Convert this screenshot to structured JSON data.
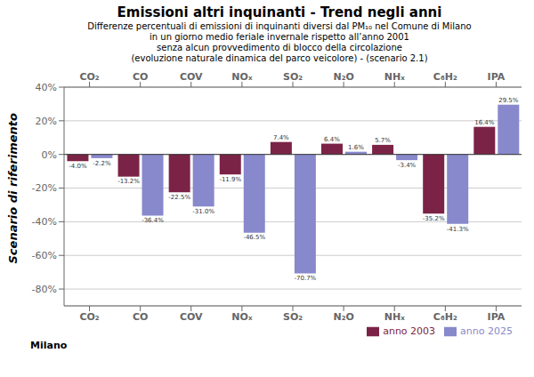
{
  "chart_data": {
    "type": "bar",
    "title": "Emissioni altri inquinanti - Trend negli anni",
    "subtitle": [
      "Differenze percentuali di emissioni di inquinanti diversi dal PM₁₀ nel Comune di Milano",
      "in un giorno medio feriale invernale rispetto all’anno 2001",
      "senza alcun provvedimento di blocco della circolazione",
      "(evoluzione naturale dinamica del parco veicolore) - (scenario 2.1)"
    ],
    "annotations": [
      "Scenario di riferimento",
      "Milano"
    ],
    "categories": [
      "CO₂",
      "CO",
      "COV",
      "NOₓ",
      "SO₂",
      "N₂O",
      "NHₓ",
      "C₆H₂",
      "IPA"
    ],
    "series": [
      {
        "name": "anno 2003",
        "color": "#7B2346",
        "values": [
          -4.0,
          -13.2,
          -22.5,
          -11.9,
          7.4,
          6.4,
          5.7,
          -35.2,
          16.4
        ],
        "value_labels": [
          "-4.0%",
          "-13.2%",
          "-22.5%",
          "-11.9%",
          "7.4%",
          "6.4%",
          "5.7%",
          "-35.2%",
          "16.4%"
        ]
      },
      {
        "name": "anno 2025",
        "color": "#8888CC",
        "values": [
          -2.2,
          -36.4,
          -31.0,
          -46.5,
          -70.7,
          1.6,
          -3.4,
          -41.3,
          29.5
        ],
        "value_labels": [
          "-2.2%",
          "-36.4%",
          "-31.0%",
          "-46.5%",
          "-70.7%",
          "1.6%",
          "-3.4%",
          "-41.3%",
          "29.5%"
        ]
      }
    ],
    "ylim": [
      -90,
      40
    ],
    "yticks": [
      {
        "value": -80,
        "label": "-80%"
      },
      {
        "value": -60,
        "label": "-60%"
      },
      {
        "value": -40,
        "label": "-40%"
      },
      {
        "value": -20,
        "label": "-20%"
      },
      {
        "value": 0,
        "label": "0%"
      },
      {
        "value": 20,
        "label": "20%"
      },
      {
        "value": 40,
        "label": "40%"
      }
    ],
    "grid": true,
    "legend": "lower right",
    "data_labels": true
  }
}
